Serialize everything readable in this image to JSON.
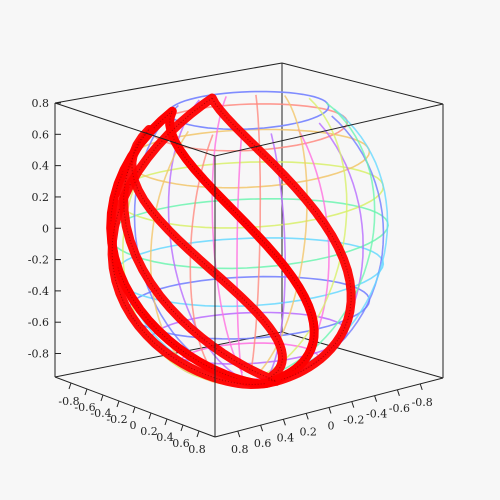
{
  "chart_data": {
    "type": "surface3d",
    "title": "",
    "xlabel": "",
    "ylabel": "",
    "zlabel": "",
    "axis_ranges": {
      "x": [
        -1,
        1
      ],
      "y": [
        -1,
        1
      ],
      "z": [
        -0.95,
        0.8
      ]
    },
    "box": true,
    "grid": false,
    "z_ticks": [
      "0.8",
      "0.6",
      "0.4",
      "0.2",
      "0",
      "-0.2",
      "-0.4",
      "-0.6",
      "-0.8"
    ],
    "z_tick_values": [
      0.8,
      0.6,
      0.4,
      0.2,
      0,
      -0.2,
      -0.4,
      -0.6,
      -0.8
    ],
    "front_left_ticks": [
      "-0.8",
      "-0.6",
      "-0.4",
      "-0.2",
      "0",
      "0.2",
      "0.4",
      "0.6",
      "0.8"
    ],
    "front_right_ticks": [
      "0.8",
      "0.6",
      "0.4",
      "0.2",
      "0",
      "-0.2",
      "-0.4",
      "-0.6",
      "-0.8"
    ],
    "surface": {
      "shape": "unit sphere wireframe",
      "radius": 1,
      "latitudes_deg": [
        -60,
        -45,
        -30,
        -15,
        0,
        15,
        30,
        45
      ],
      "longitudes_deg": [
        0,
        20,
        40,
        60,
        80,
        100,
        120,
        140,
        160,
        180,
        200,
        220,
        240,
        260,
        280,
        300,
        320,
        340
      ],
      "cap_latitude_deg": 55,
      "colors": [
        "#ff6fe0",
        "#b86bff",
        "#6f7bff",
        "#66d8ff",
        "#6cf5b0",
        "#d8f06a",
        "#f2c56a",
        "#ff8a80"
      ]
    },
    "curves": [
      {
        "name": "",
        "color": "#ff0000",
        "type": "tube",
        "description_values": {
          "lat_start": 0.62,
          "lat_end": -0.93
        }
      }
    ]
  }
}
